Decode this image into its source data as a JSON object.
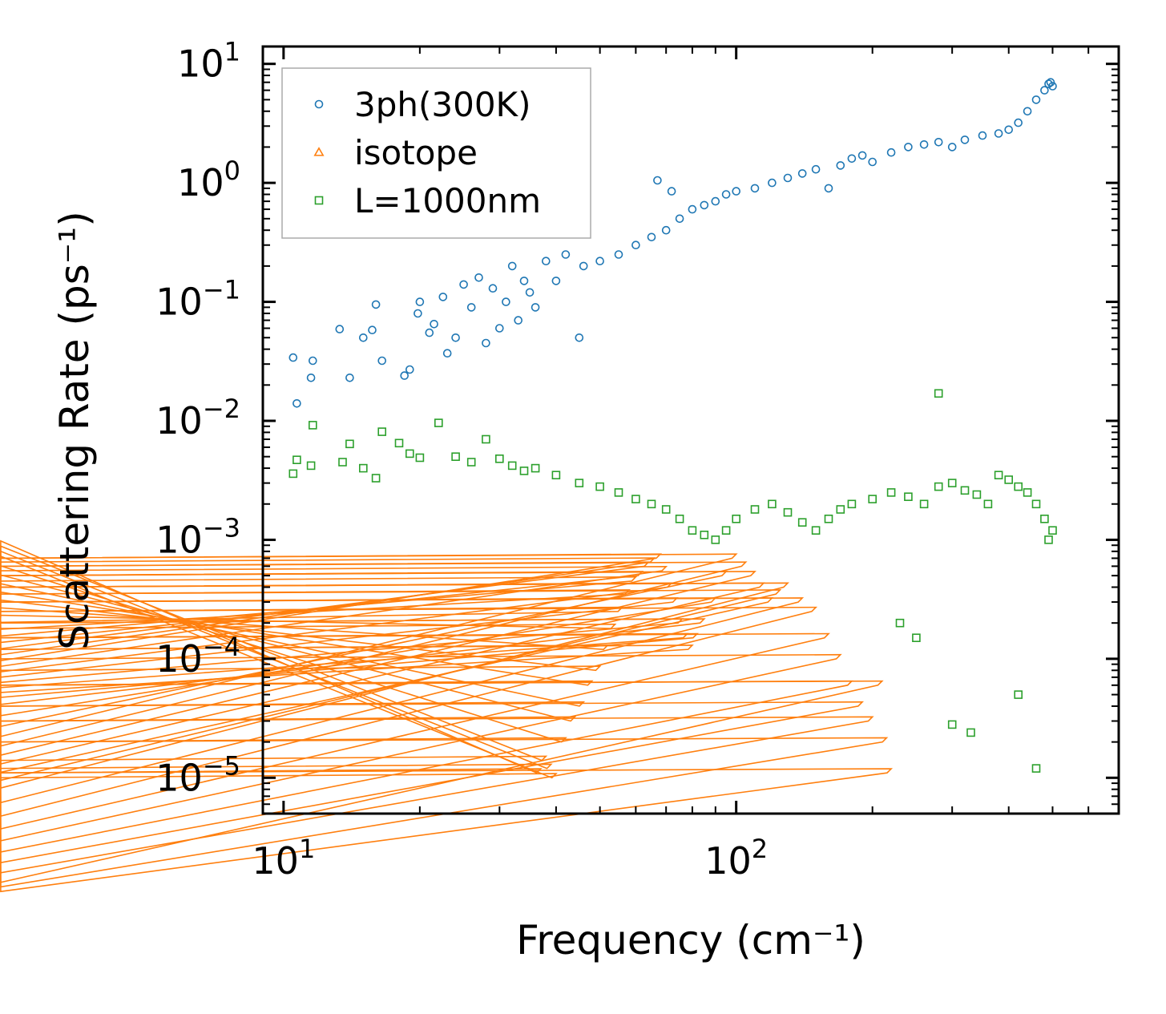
{
  "chart_data": {
    "type": "scatter",
    "title": "",
    "xlabel": "Frequency (cm⁻¹)",
    "ylabel": "Scattering Rate (ps⁻¹)",
    "xscale": "log",
    "yscale": "log",
    "xlim": [
      9,
      700
    ],
    "ylim": [
      5e-06,
      14
    ],
    "x_ticks": [
      {
        "base": "10",
        "exp": "1"
      },
      {
        "base": "10",
        "exp": "2"
      }
    ],
    "y_ticks": [
      {
        "base": "10",
        "exp": "1"
      },
      {
        "base": "10",
        "exp": "0"
      },
      {
        "base": "10",
        "exp": "−1"
      },
      {
        "base": "10",
        "exp": "−2"
      },
      {
        "base": "10",
        "exp": "−3"
      },
      {
        "base": "10",
        "exp": "−4"
      },
      {
        "base": "10",
        "exp": "−5"
      }
    ],
    "legend_position": "top-left",
    "series": [
      {
        "name": "3ph(300K)",
        "marker": "circle",
        "color": "#1f77b4",
        "points": [
          [
            10.5,
            0.034
          ],
          [
            10.7,
            0.014
          ],
          [
            11.5,
            0.023
          ],
          [
            11.6,
            0.032
          ],
          [
            13.3,
            0.059
          ],
          [
            14,
            0.023
          ],
          [
            15,
            0.05
          ],
          [
            15.7,
            0.058
          ],
          [
            16,
            0.095
          ],
          [
            16.5,
            0.032
          ],
          [
            18.5,
            0.024
          ],
          [
            19,
            0.027
          ],
          [
            19.8,
            0.08
          ],
          [
            20,
            0.1
          ],
          [
            21,
            0.055
          ],
          [
            21.5,
            0.065
          ],
          [
            22.5,
            0.11
          ],
          [
            23,
            0.037
          ],
          [
            24,
            0.05
          ],
          [
            25,
            0.14
          ],
          [
            26,
            0.09
          ],
          [
            27,
            0.16
          ],
          [
            28,
            0.045
          ],
          [
            29,
            0.13
          ],
          [
            30,
            0.06
          ],
          [
            31,
            0.1
          ],
          [
            32,
            0.2
          ],
          [
            33,
            0.07
          ],
          [
            34,
            0.15
          ],
          [
            35,
            0.12
          ],
          [
            36,
            0.09
          ],
          [
            38,
            0.22
          ],
          [
            40,
            0.15
          ],
          [
            42,
            0.25
          ],
          [
            45,
            0.05
          ],
          [
            46,
            0.2
          ],
          [
            50,
            0.22
          ],
          [
            55,
            0.25
          ],
          [
            60,
            0.3
          ],
          [
            65,
            0.35
          ],
          [
            67,
            1.05
          ],
          [
            70,
            0.4
          ],
          [
            72,
            0.85
          ],
          [
            75,
            0.5
          ],
          [
            80,
            0.6
          ],
          [
            85,
            0.65
          ],
          [
            90,
            0.7
          ],
          [
            95,
            0.8
          ],
          [
            100,
            0.85
          ],
          [
            110,
            0.9
          ],
          [
            120,
            1.0
          ],
          [
            130,
            1.1
          ],
          [
            140,
            1.2
          ],
          [
            150,
            1.3
          ],
          [
            160,
            0.9
          ],
          [
            170,
            1.4
          ],
          [
            180,
            1.6
          ],
          [
            190,
            1.7
          ],
          [
            200,
            1.5
          ],
          [
            220,
            1.8
          ],
          [
            240,
            2.0
          ],
          [
            260,
            2.1
          ],
          [
            280,
            2.2
          ],
          [
            300,
            2.0
          ],
          [
            320,
            2.3
          ],
          [
            350,
            2.5
          ],
          [
            380,
            2.6
          ],
          [
            400,
            2.8
          ],
          [
            420,
            3.2
          ],
          [
            440,
            4.0
          ],
          [
            460,
            5.0
          ],
          [
            480,
            6.0
          ],
          [
            490,
            6.8
          ],
          [
            495,
            7.0
          ],
          [
            500,
            6.5
          ]
        ]
      },
      {
        "name": "isotope",
        "marker": "triangle",
        "color": "#ff7f0e",
        "points": [
          [
            37,
            1.1e-05
          ],
          [
            38,
            1.4e-05
          ],
          [
            39,
            1.2e-05
          ],
          [
            40,
            1e-05
          ],
          [
            42,
            2e-05
          ],
          [
            44,
            3e-05
          ],
          [
            46,
            4e-05
          ],
          [
            48,
            6e-05
          ],
          [
            50,
            8e-05
          ],
          [
            52,
            0.00012
          ],
          [
            54,
            0.00018
          ],
          [
            56,
            0.00025
          ],
          [
            58,
            0.00035
          ],
          [
            60,
            0.00045
          ],
          [
            62,
            0.0005
          ],
          [
            64,
            0.0006
          ],
          [
            66,
            0.00065
          ],
          [
            68,
            0.0007
          ],
          [
            70,
            0.00055
          ],
          [
            72,
            0.0004
          ],
          [
            74,
            0.0003
          ],
          [
            76,
            0.0002
          ],
          [
            78,
            0.00015
          ],
          [
            80,
            0.00012
          ],
          [
            82,
            0.00015
          ],
          [
            85,
            0.0002
          ],
          [
            90,
            0.0003
          ],
          [
            95,
            0.0005
          ],
          [
            100,
            0.0007
          ],
          [
            105,
            0.0006
          ],
          [
            110,
            0.0005
          ],
          [
            115,
            0.0004
          ],
          [
            120,
            0.0003
          ],
          [
            125,
            0.00035
          ],
          [
            130,
            0.0004
          ],
          [
            140,
            0.0003
          ],
          [
            150,
            0.00025
          ],
          [
            160,
            0.00015
          ],
          [
            170,
            0.0001
          ],
          [
            180,
            6e-05
          ],
          [
            190,
            4e-05
          ],
          [
            200,
            3e-05
          ],
          [
            210,
            6e-05
          ],
          [
            215,
            2e-05
          ],
          [
            220,
            1.1e-05
          ]
        ]
      },
      {
        "name": "L=1000nm",
        "marker": "square",
        "color": "#2ca02c",
        "points": [
          [
            10.5,
            0.0036
          ],
          [
            10.7,
            0.0047
          ],
          [
            11.5,
            0.0042
          ],
          [
            11.6,
            0.0092
          ],
          [
            13.5,
            0.0045
          ],
          [
            14,
            0.0064
          ],
          [
            15,
            0.004
          ],
          [
            16,
            0.0033
          ],
          [
            16.5,
            0.0081
          ],
          [
            18,
            0.0065
          ],
          [
            19,
            0.0053
          ],
          [
            20,
            0.0049
          ],
          [
            22,
            0.0096
          ],
          [
            24,
            0.005
          ],
          [
            26,
            0.0045
          ],
          [
            28,
            0.007
          ],
          [
            30,
            0.0048
          ],
          [
            32,
            0.0042
          ],
          [
            34,
            0.0038
          ],
          [
            36,
            0.004
          ],
          [
            40,
            0.0035
          ],
          [
            45,
            0.003
          ],
          [
            50,
            0.0028
          ],
          [
            55,
            0.0025
          ],
          [
            60,
            0.0022
          ],
          [
            65,
            0.002
          ],
          [
            70,
            0.0018
          ],
          [
            75,
            0.0015
          ],
          [
            80,
            0.0012
          ],
          [
            85,
            0.0011
          ],
          [
            90,
            0.001
          ],
          [
            95,
            0.0012
          ],
          [
            100,
            0.0015
          ],
          [
            110,
            0.0018
          ],
          [
            120,
            0.002
          ],
          [
            130,
            0.0017
          ],
          [
            140,
            0.0014
          ],
          [
            150,
            0.0012
          ],
          [
            160,
            0.0015
          ],
          [
            170,
            0.0018
          ],
          [
            180,
            0.002
          ],
          [
            200,
            0.0022
          ],
          [
            220,
            0.0025
          ],
          [
            240,
            0.0023
          ],
          [
            260,
            0.002
          ],
          [
            280,
            0.0028
          ],
          [
            300,
            0.003
          ],
          [
            320,
            0.0026
          ],
          [
            340,
            0.0024
          ],
          [
            360,
            0.002
          ],
          [
            380,
            0.0035
          ],
          [
            400,
            0.0032
          ],
          [
            420,
            0.0028
          ],
          [
            440,
            0.0025
          ],
          [
            460,
            0.002
          ],
          [
            480,
            0.0015
          ],
          [
            490,
            0.001
          ],
          [
            500,
            0.0012
          ],
          [
            280,
            0.017
          ],
          [
            230,
            0.0002
          ],
          [
            250,
            0.00015
          ],
          [
            300,
            2.8e-05
          ],
          [
            330,
            2.4e-05
          ],
          [
            420,
            5e-05
          ],
          [
            460,
            1.2e-05
          ]
        ]
      }
    ]
  }
}
